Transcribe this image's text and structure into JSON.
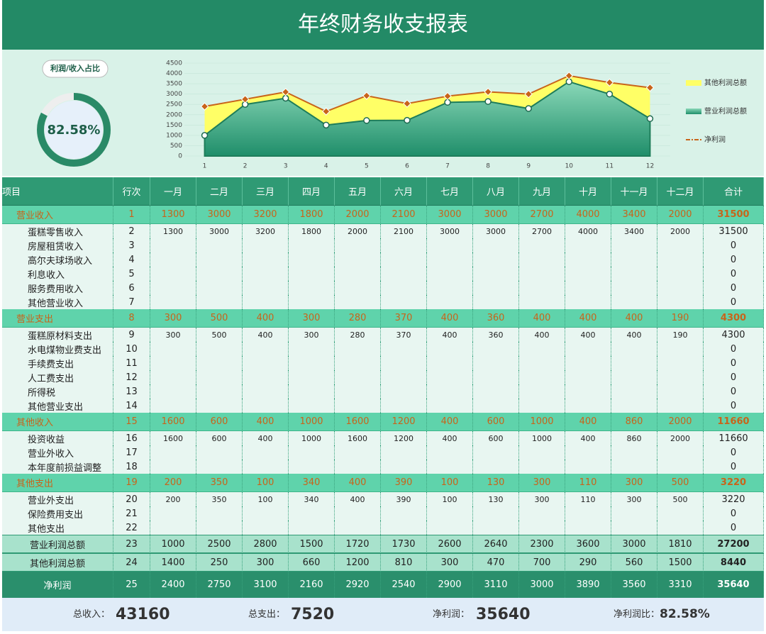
{
  "header": {
    "title": "年终财务收支报表"
  },
  "gauge": {
    "label": "利润/收入占比",
    "value": 82.58,
    "value_label": "82.58%"
  },
  "chart_data": {
    "type": "area",
    "categories": [
      1,
      2,
      3,
      4,
      5,
      6,
      7,
      8,
      9,
      10,
      11,
      12
    ],
    "ylim": [
      0,
      4500
    ],
    "yticks": [
      0,
      500,
      1000,
      1500,
      2000,
      2500,
      3000,
      3500,
      4000,
      4500
    ],
    "series": [
      {
        "name": "其他利润总额",
        "color": "#ffff66",
        "values": [
          1400,
          250,
          300,
          660,
          1200,
          810,
          300,
          470,
          700,
          290,
          560,
          1500
        ]
      },
      {
        "name": "营业利润总额",
        "color": "#2f9a74",
        "values": [
          1000,
          2500,
          2800,
          1500,
          1720,
          1730,
          2600,
          2640,
          2300,
          3600,
          3000,
          1810
        ]
      },
      {
        "name": "净利润",
        "color": "#c8641a",
        "values": [
          2400,
          2750,
          3100,
          2160,
          2920,
          2540,
          2900,
          3110,
          3000,
          3890,
          3560,
          3310
        ]
      }
    ]
  },
  "table": {
    "columns": [
      "项目",
      "行次",
      "一月",
      "二月",
      "三月",
      "四月",
      "五月",
      "六月",
      "七月",
      "八月",
      "九月",
      "十月",
      "十一月",
      "十二月",
      "合计"
    ],
    "sections": [
      {
        "row": [
          "营业收入",
          1,
          1300,
          3000,
          3200,
          1800,
          2000,
          2100,
          3000,
          3000,
          2700,
          4000,
          3400,
          2000,
          31500
        ],
        "items": [
          [
            "蛋糕零售收入",
            2,
            1300,
            3000,
            3200,
            1800,
            2000,
            2100,
            3000,
            3000,
            2700,
            4000,
            3400,
            2000,
            31500
          ],
          [
            "房屋租赁收入",
            3,
            null,
            null,
            null,
            null,
            null,
            null,
            null,
            null,
            null,
            null,
            null,
            null,
            0
          ],
          [
            "高尔夫球场收入",
            4,
            null,
            null,
            null,
            null,
            null,
            null,
            null,
            null,
            null,
            null,
            null,
            null,
            0
          ],
          [
            "利息收入",
            5,
            null,
            null,
            null,
            null,
            null,
            null,
            null,
            null,
            null,
            null,
            null,
            null,
            0
          ],
          [
            "服务费用收入",
            6,
            null,
            null,
            null,
            null,
            null,
            null,
            null,
            null,
            null,
            null,
            null,
            null,
            0
          ],
          [
            "其他营业收入",
            7,
            null,
            null,
            null,
            null,
            null,
            null,
            null,
            null,
            null,
            null,
            null,
            null,
            0
          ]
        ]
      },
      {
        "row": [
          "营业支出",
          8,
          300,
          500,
          400,
          300,
          280,
          370,
          400,
          360,
          400,
          400,
          400,
          190,
          4300
        ],
        "items": [
          [
            "蛋糕原材料支出",
            9,
            300,
            500,
            400,
            300,
            280,
            370,
            400,
            360,
            400,
            400,
            400,
            190,
            4300
          ],
          [
            "水电煤物业费支出",
            10,
            null,
            null,
            null,
            null,
            null,
            null,
            null,
            null,
            null,
            null,
            null,
            null,
            0
          ],
          [
            "手续费支出",
            11,
            null,
            null,
            null,
            null,
            null,
            null,
            null,
            null,
            null,
            null,
            null,
            null,
            0
          ],
          [
            "人工费支出",
            12,
            null,
            null,
            null,
            null,
            null,
            null,
            null,
            null,
            null,
            null,
            null,
            null,
            0
          ],
          [
            "所得税",
            13,
            null,
            null,
            null,
            null,
            null,
            null,
            null,
            null,
            null,
            null,
            null,
            null,
            0
          ],
          [
            "其他营业支出",
            14,
            null,
            null,
            null,
            null,
            null,
            null,
            null,
            null,
            null,
            null,
            null,
            null,
            0
          ]
        ]
      },
      {
        "row": [
          "其他收入",
          15,
          1600,
          600,
          400,
          1000,
          1600,
          1200,
          400,
          600,
          1000,
          400,
          860,
          2000,
          11660
        ],
        "items": [
          [
            "投资收益",
            16,
            1600,
            600,
            400,
            1000,
            1600,
            1200,
            400,
            600,
            1000,
            400,
            860,
            2000,
            11660
          ],
          [
            "营业外收入",
            17,
            null,
            null,
            null,
            null,
            null,
            null,
            null,
            null,
            null,
            null,
            null,
            null,
            0
          ],
          [
            "本年度前损益调整",
            18,
            null,
            null,
            null,
            null,
            null,
            null,
            null,
            null,
            null,
            null,
            null,
            null,
            0
          ]
        ]
      },
      {
        "row": [
          "其他支出",
          19,
          200,
          350,
          100,
          340,
          400,
          390,
          100,
          130,
          300,
          110,
          300,
          500,
          3220
        ],
        "items": [
          [
            "营业外支出",
            20,
            200,
            350,
            100,
            340,
            400,
            390,
            100,
            130,
            300,
            110,
            300,
            500,
            3220
          ],
          [
            "保险费用支出",
            21,
            null,
            null,
            null,
            null,
            null,
            null,
            null,
            null,
            null,
            null,
            null,
            null,
            0
          ],
          [
            "其他支出",
            22,
            null,
            null,
            null,
            null,
            null,
            null,
            null,
            null,
            null,
            null,
            null,
            null,
            0
          ]
        ]
      }
    ],
    "totals": [
      [
        "营业利润总额",
        23,
        1000,
        2500,
        2800,
        1500,
        1720,
        1730,
        2600,
        2640,
        2300,
        3600,
        3000,
        1810,
        27200
      ],
      [
        "其他利润总额",
        24,
        1400,
        250,
        300,
        660,
        1200,
        810,
        300,
        470,
        700,
        290,
        560,
        1500,
        8440
      ],
      [
        "净利润",
        25,
        2400,
        2750,
        3100,
        2160,
        2920,
        2540,
        2900,
        3110,
        3000,
        3890,
        3560,
        3310,
        35640
      ]
    ]
  },
  "summary": [
    {
      "label": "总收入：",
      "value": 43160
    },
    {
      "label": "总支出：",
      "value": 7520
    },
    {
      "label": "净利润：",
      "value": 35640
    },
    {
      "label": "净利润比：",
      "value": 82.58,
      "value_label": "82.58%"
    }
  ]
}
